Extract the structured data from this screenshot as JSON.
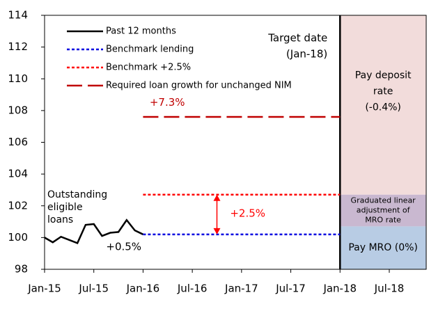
{
  "chart_data": {
    "type": "line",
    "xticks": [
      {
        "value": 0,
        "label": "Jan-15"
      },
      {
        "value": 6,
        "label": "Jul-15"
      },
      {
        "value": 12,
        "label": "Jan-16"
      },
      {
        "value": 18,
        "label": "Jul-16"
      },
      {
        "value": 24,
        "label": "Jan-17"
      },
      {
        "value": 30,
        "label": "Jul-17"
      },
      {
        "value": 36,
        "label": "Jan-18"
      },
      {
        "value": 42,
        "label": "Jul-18"
      }
    ],
    "xlim": [
      0,
      46.5
    ],
    "ylim": [
      98,
      114
    ],
    "yticks": [
      98,
      100,
      102,
      104,
      106,
      108,
      110,
      112,
      114
    ],
    "series": [
      {
        "name": "Past 12 months",
        "color": "#000000",
        "dash": "solid",
        "x": [
          0,
          1,
          2,
          3,
          4,
          5,
          6,
          7,
          8,
          9,
          10,
          11,
          12
        ],
        "values": [
          100.0,
          99.7,
          100.05,
          99.85,
          99.65,
          100.8,
          100.85,
          100.1,
          100.3,
          100.35,
          101.1,
          100.45,
          100.2
        ]
      },
      {
        "name": "Benchmark lending",
        "color": "#0000e0",
        "dash": "dotted",
        "x": [
          12,
          36
        ],
        "values": [
          100.2,
          100.2
        ]
      },
      {
        "name": "Benchmark +2.5%",
        "color": "#ff0000",
        "dash": "dotted",
        "x": [
          12,
          36
        ],
        "values": [
          102.7,
          102.7
        ]
      },
      {
        "name": "Required loan growth for unchanged NIM",
        "color": "#c00000",
        "dash": "dashed",
        "x": [
          12,
          36
        ],
        "values": [
          107.6,
          107.6
        ]
      }
    ],
    "target_x": 36,
    "zones": [
      {
        "label": [
          "Pay deposit",
          "rate",
          "(-0.4%)"
        ],
        "ylim": [
          102.7,
          114
        ],
        "color": "#f2dcdb"
      },
      {
        "label": [
          "Graduated linear",
          "adjustment of",
          "MRO rate"
        ],
        "ylim": [
          100.7,
          102.7
        ],
        "color": "#c9b8d0"
      },
      {
        "label": [
          "Pay MRO (0%)"
        ],
        "ylim": [
          98,
          100.7
        ],
        "color": "#b8cce4"
      }
    ],
    "target_label": [
      "Target date",
      "(Jan-18)"
    ],
    "loans_label": [
      "Outstanding",
      "eligible",
      "loans"
    ],
    "annotations": [
      "+7.3%",
      "+2.5%",
      "+0.5%"
    ]
  }
}
